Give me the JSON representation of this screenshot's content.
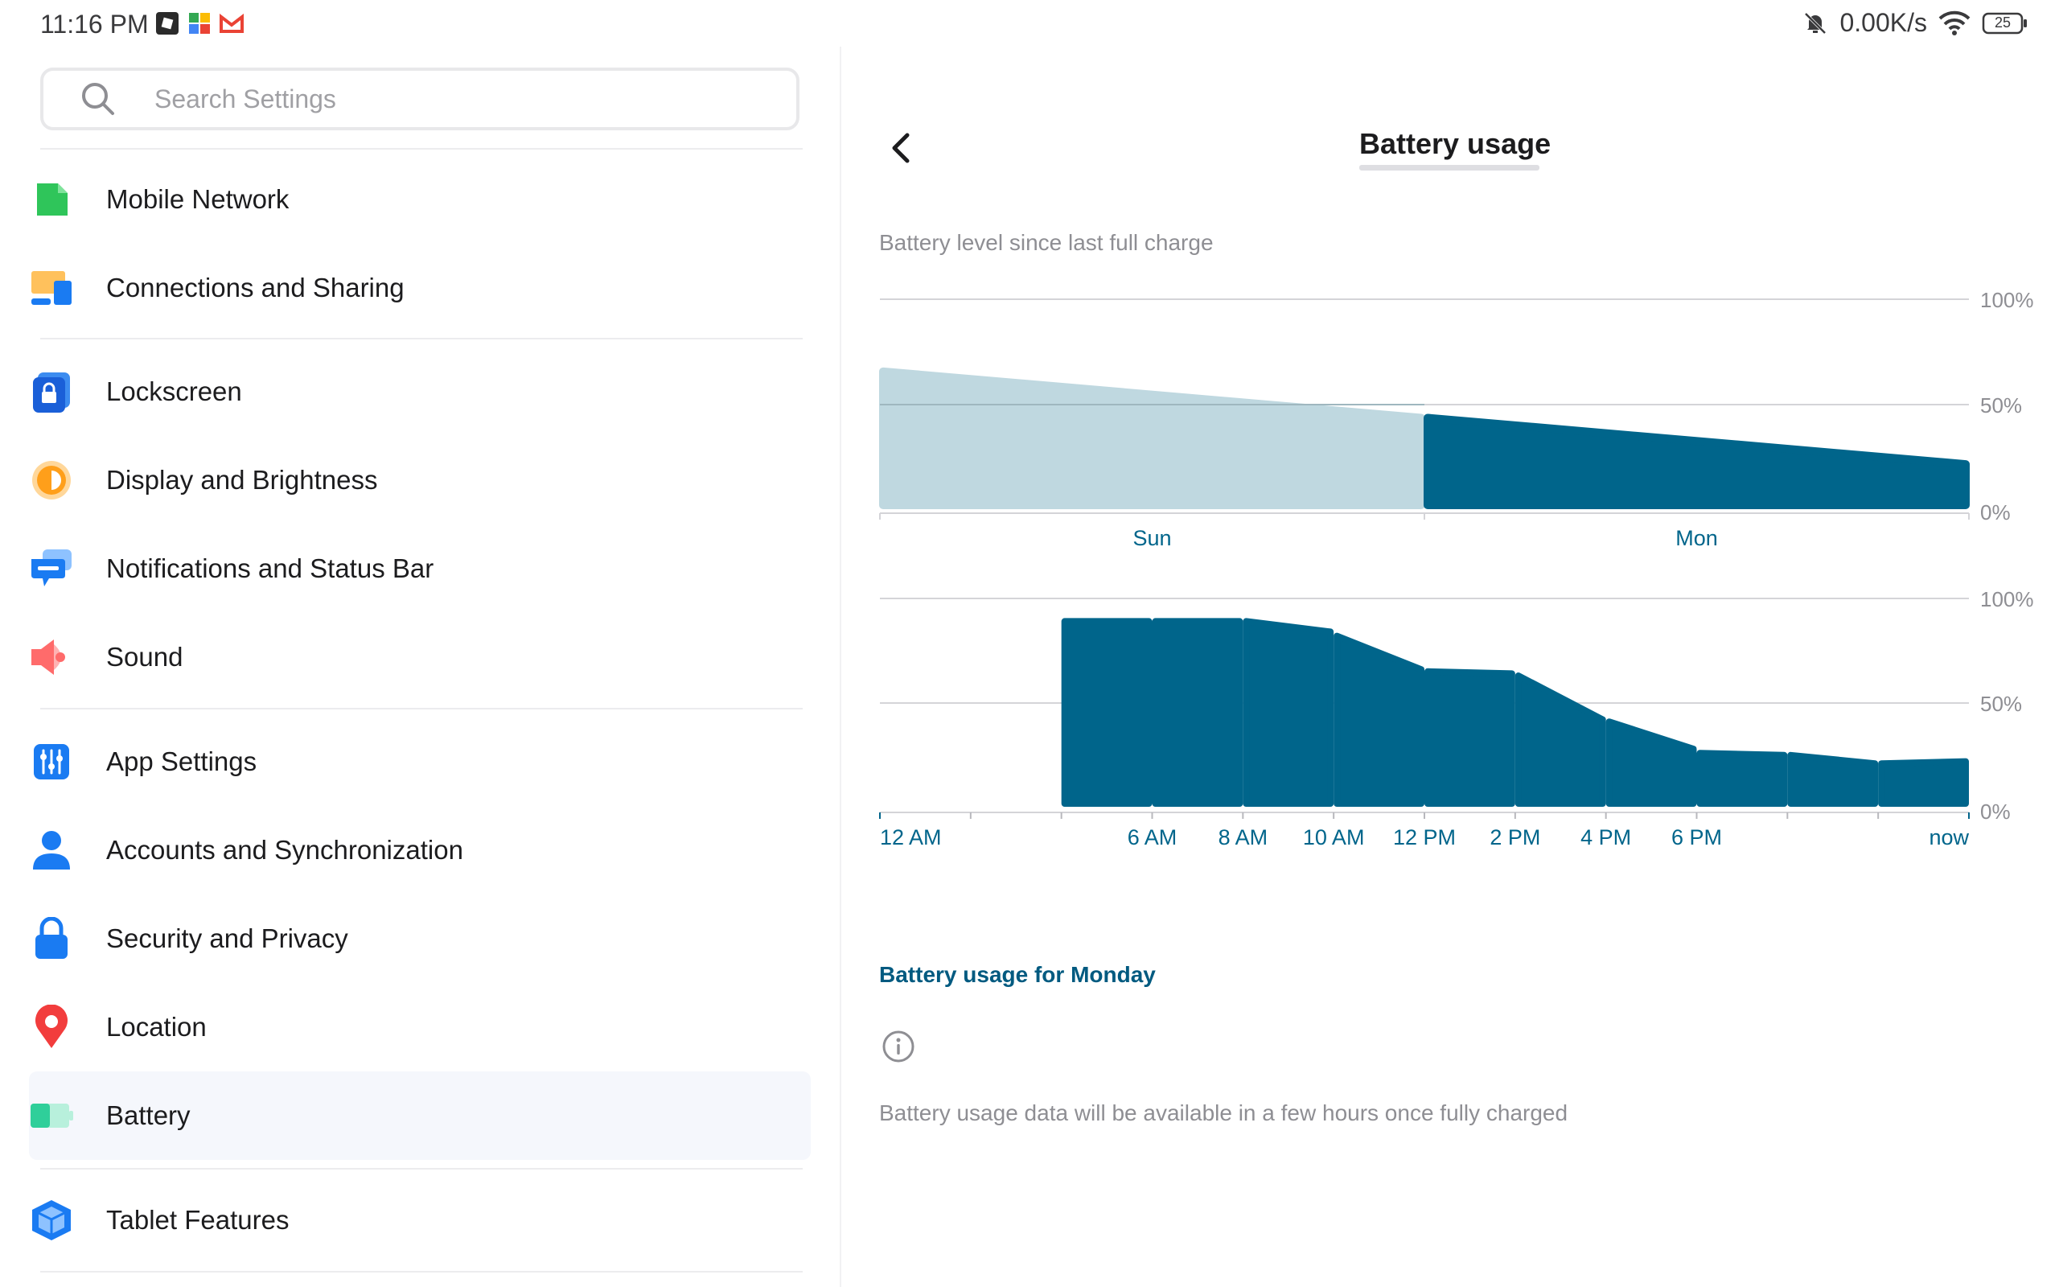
{
  "status_bar": {
    "time": "11:16 PM",
    "net_speed": "0.00K/s",
    "battery_level": "25"
  },
  "search": {
    "placeholder": "Search Settings"
  },
  "sidebar": {
    "items": [
      {
        "label": "Mobile Network",
        "icon": "mobile-network-icon"
      },
      {
        "label": "Connections and Sharing",
        "icon": "connections-icon"
      },
      {
        "label": "Lockscreen",
        "icon": "lockscreen-icon"
      },
      {
        "label": "Display and Brightness",
        "icon": "display-brightness-icon"
      },
      {
        "label": "Notifications and Status Bar",
        "icon": "notifications-icon"
      },
      {
        "label": "Sound",
        "icon": "sound-icon"
      },
      {
        "label": "App Settings",
        "icon": "app-settings-icon"
      },
      {
        "label": "Accounts and Synchronization",
        "icon": "accounts-icon"
      },
      {
        "label": "Security and Privacy",
        "icon": "security-icon"
      },
      {
        "label": "Location",
        "icon": "location-icon"
      },
      {
        "label": "Battery",
        "icon": "battery-icon",
        "selected": true
      },
      {
        "label": "Tablet Features",
        "icon": "tablet-features-icon"
      }
    ]
  },
  "header": {
    "title": "Battery usage"
  },
  "main": {
    "chart_caption": "Battery level since last full charge",
    "section_title": "Battery usage for Monday",
    "note": "Battery usage data will be available in a few hours once fully charged"
  },
  "colors": {
    "accent": "#00658b",
    "light_series": "#bfd8e0",
    "section_title": "#005a80"
  },
  "chart_data": [
    {
      "type": "area",
      "title": "",
      "categories": [
        "Sun",
        "Mon"
      ],
      "y_ticks": [
        "100%",
        "50%",
        "0%"
      ],
      "ylim": [
        0,
        100
      ],
      "grid": true,
      "series": [
        {
          "name": "",
          "x": [
            "Sun start",
            "Sun end"
          ],
          "values": [
            68,
            46
          ]
        },
        {
          "name": "",
          "x": [
            "Mon start",
            "Mon end"
          ],
          "values": [
            46,
            24
          ]
        }
      ]
    },
    {
      "type": "bar",
      "title": "",
      "x_tick_labels": [
        "12 AM",
        "6 AM",
        "8 AM",
        "10 AM",
        "12 PM",
        "2 PM",
        "4 PM",
        "6 PM",
        "now"
      ],
      "y_ticks": [
        "100%",
        "50%",
        "0%"
      ],
      "ylim": [
        0,
        100
      ],
      "grid": true,
      "bars": [
        {
          "start": 91,
          "end": 91
        },
        {
          "start": 91,
          "end": 91
        },
        {
          "start": 91,
          "end": 86
        },
        {
          "start": 84,
          "end": 68
        },
        {
          "start": 67,
          "end": 66
        },
        {
          "start": 65,
          "end": 44
        },
        {
          "start": 43,
          "end": 30
        },
        {
          "start": 28,
          "end": 27
        },
        {
          "start": 27,
          "end": 23
        },
        {
          "start": 23,
          "end": 24
        }
      ]
    }
  ]
}
